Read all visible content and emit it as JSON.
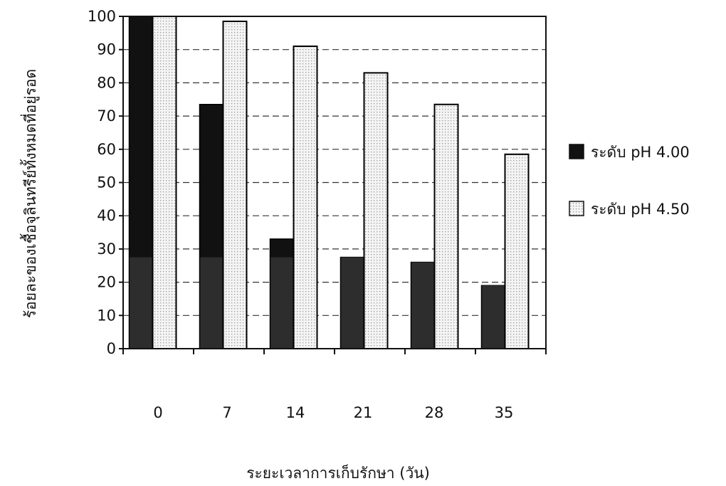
{
  "chart_data": {
    "type": "bar",
    "title": "",
    "xlabel": "ระยะเวลาการเก็บรักษา (วัน)",
    "ylabel": "ร้อยละของเชื้อจุลินทรีย์ทั้งหมดที่อยู่รอด",
    "categories": [
      "0",
      "7",
      "14",
      "21",
      "28",
      "35"
    ],
    "ylim": [
      0,
      100
    ],
    "yticks": [
      0,
      10,
      20,
      30,
      40,
      50,
      60,
      70,
      80,
      90,
      100
    ],
    "grid": "horizontal dashed",
    "legend_position": "right",
    "series": [
      {
        "name": "ระดับ pH 4.00",
        "values": [
          100,
          73.5,
          33,
          27.5,
          26,
          19
        ],
        "color": "#111111",
        "pattern": "solid"
      },
      {
        "name": "ระดับ pH 4.50",
        "values": [
          100,
          98.5,
          91,
          83,
          73.5,
          58.5
        ],
        "color": "#f2f2f2",
        "pattern": "dotted"
      }
    ]
  }
}
